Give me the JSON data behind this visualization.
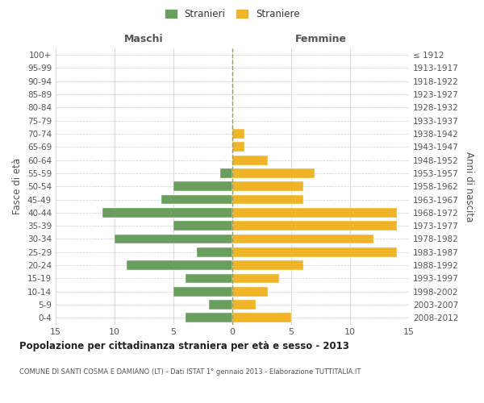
{
  "age_groups": [
    "0-4",
    "5-9",
    "10-14",
    "15-19",
    "20-24",
    "25-29",
    "30-34",
    "35-39",
    "40-44",
    "45-49",
    "50-54",
    "55-59",
    "60-64",
    "65-69",
    "70-74",
    "75-79",
    "80-84",
    "85-89",
    "90-94",
    "95-99",
    "100+"
  ],
  "birth_years": [
    "2008-2012",
    "2003-2007",
    "1998-2002",
    "1993-1997",
    "1988-1992",
    "1983-1987",
    "1978-1982",
    "1973-1977",
    "1968-1972",
    "1963-1967",
    "1958-1962",
    "1953-1957",
    "1948-1952",
    "1943-1947",
    "1938-1942",
    "1933-1937",
    "1928-1932",
    "1923-1927",
    "1918-1922",
    "1913-1917",
    "≤ 1912"
  ],
  "males": [
    4,
    2,
    5,
    4,
    9,
    3,
    10,
    5,
    11,
    6,
    5,
    1,
    0,
    0,
    0,
    0,
    0,
    0,
    0,
    0,
    0
  ],
  "females": [
    5,
    2,
    3,
    4,
    6,
    14,
    12,
    14,
    14,
    6,
    6,
    7,
    3,
    1,
    1,
    0,
    0,
    0,
    0,
    0,
    0
  ],
  "male_color": "#6a9e5f",
  "female_color": "#f0b429",
  "background_color": "#ffffff",
  "grid_color": "#cccccc",
  "center_line_color": "#999966",
  "xlim": 15,
  "title": "Popolazione per cittadinanza straniera per età e sesso - 2013",
  "subtitle": "COMUNE DI SANTI COSMA E DAMIANO (LT) - Dati ISTAT 1° gennaio 2013 - Elaborazione TUTTITALIA.IT",
  "xlabel_left": "Maschi",
  "xlabel_right": "Femmine",
  "ylabel_left": "Fasce di età",
  "ylabel_right": "Anni di nascita",
  "legend_male": "Stranieri",
  "legend_female": "Straniere"
}
